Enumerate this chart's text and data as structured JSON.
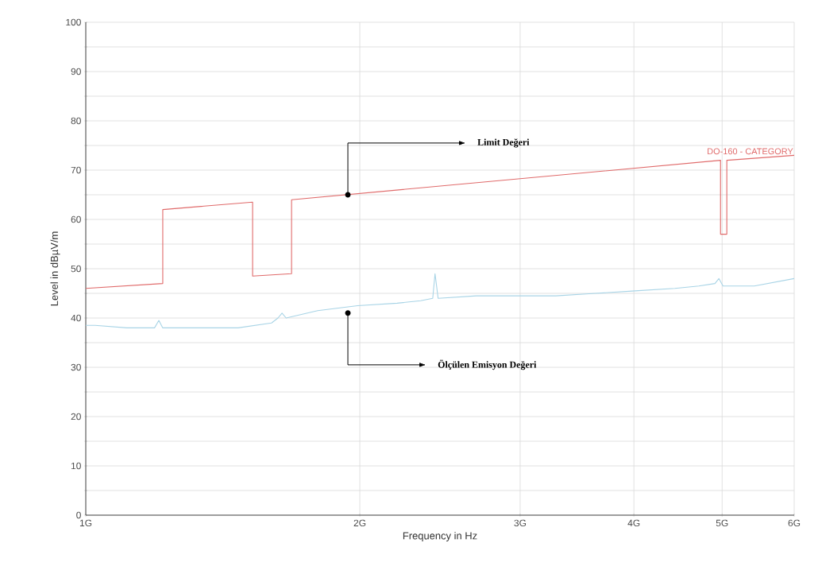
{
  "chart_data": {
    "type": "line",
    "xlabel": "Frequency in Hz",
    "ylabel": "Level in dBµV/m",
    "log": "x",
    "grid": true,
    "marker": "none",
    "line_style": "solid",
    "xlim": [
      1,
      6
    ],
    "ylim": [
      0,
      100
    ],
    "xticks": [
      {
        "value": 1,
        "label": "1G"
      },
      {
        "value": 2,
        "label": "2G"
      },
      {
        "value": 3,
        "label": "3G"
      },
      {
        "value": 4,
        "label": "4G"
      },
      {
        "value": 5,
        "label": "5G"
      },
      {
        "value": 6,
        "label": "6G"
      }
    ],
    "yticks": [
      0,
      {
        "value": 5,
        "label": null
      },
      10,
      {
        "value": 15,
        "label": null
      },
      20,
      {
        "value": 25,
        "label": null
      },
      30,
      {
        "value": 35,
        "label": null
      },
      40,
      {
        "value": 45,
        "label": null
      },
      50,
      {
        "value": 55,
        "label": null
      },
      60,
      {
        "value": 65,
        "label": null
      },
      70,
      {
        "value": 75,
        "label": null
      },
      80,
      {
        "value": 85,
        "label": null
      },
      90,
      {
        "value": 95,
        "label": null
      },
      100
    ],
    "series": [
      {
        "name": "DO-160 - CATEGORY",
        "color": "#e06a6a",
        "x": [
          1,
          1.215,
          1.215,
          1.525,
          1.525,
          1.683,
          1.683,
          4.98,
          4.98,
          5.06,
          5.06,
          6
        ],
        "values": [
          46,
          47,
          62,
          63.5,
          48.5,
          49,
          64,
          72,
          57,
          57,
          72,
          73
        ]
      },
      {
        "color": "#a8d4e6",
        "x": [
          1,
          1.024,
          1.11,
          1.19,
          1.203,
          1.215,
          1.33,
          1.47,
          1.6,
          1.626,
          1.643,
          1.66,
          1.798,
          1.989,
          2.198,
          2.333,
          2.405,
          2.419,
          2.438,
          2.686,
          2.971,
          3.284,
          3.63,
          4.013,
          4.437,
          4.715,
          4.91,
          4.96,
          5.012,
          5.424,
          6
        ],
        "values": [
          38.5,
          38.5,
          38,
          38,
          39.5,
          38,
          38,
          38,
          39,
          40,
          41,
          40,
          41.5,
          42.5,
          43,
          43.5,
          44,
          49,
          44,
          44.5,
          44.5,
          44.5,
          45,
          45.5,
          46,
          46.5,
          47,
          48,
          46.5,
          46.5,
          48
        ]
      }
    ],
    "annotations": [
      "Limit Değeri",
      "Ölçülen Emisyon Değeri"
    ]
  }
}
